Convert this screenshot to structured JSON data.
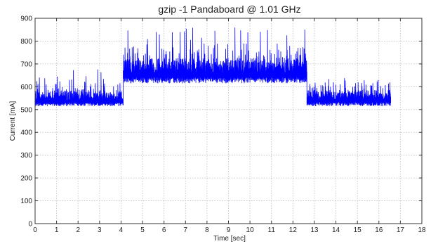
{
  "chart_data": {
    "type": "line",
    "title": "gzip -1 Pandaboard @ 1.01 GHz",
    "xlabel": "Time [sec]",
    "ylabel": "Current [mA]",
    "xlim": [
      0,
      18
    ],
    "ylim": [
      0,
      900
    ],
    "xticks": [
      0,
      1,
      2,
      3,
      4,
      5,
      6,
      7,
      8,
      9,
      10,
      11,
      12,
      13,
      14,
      15,
      16,
      17,
      18
    ],
    "yticks": [
      0,
      100,
      200,
      300,
      400,
      500,
      600,
      700,
      800,
      900
    ],
    "grid": true,
    "series": [
      {
        "color": "#0000ff",
        "segments": [
          {
            "x_start": 0.0,
            "x_end": 4.1,
            "min": 515,
            "base": 540,
            "peak_typ": 620,
            "peak_max": 680
          },
          {
            "x_start": 4.1,
            "x_end": 12.65,
            "min": 615,
            "base": 660,
            "peak_typ": 780,
            "peak_max": 860
          },
          {
            "x_start": 12.65,
            "x_end": 16.55,
            "min": 515,
            "base": 545,
            "peak_typ": 620,
            "peak_max": 640
          }
        ]
      }
    ]
  }
}
